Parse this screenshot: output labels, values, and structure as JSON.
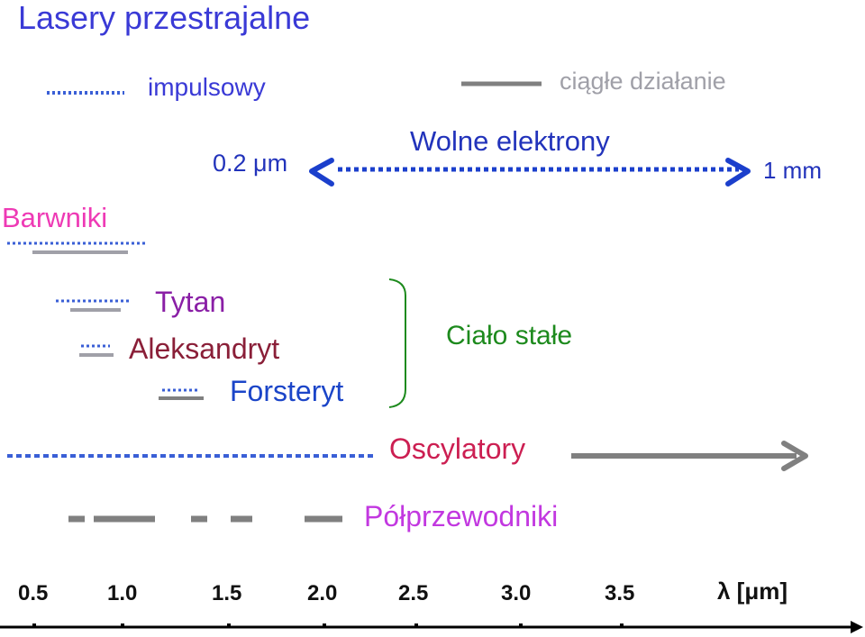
{
  "title": "Lasery przestrajalne",
  "legend": {
    "pulsed": "impulsowy",
    "continuous": "ciągłe działanie"
  },
  "free_electron": {
    "name": "Wolne elektrony",
    "start": "0.2 μm",
    "end": "1 mm"
  },
  "dyes": "Barwniki",
  "solid_state": {
    "group_label": "Ciało stałe",
    "items": [
      "Tytan",
      "Aleksandryt",
      "Forsteryt"
    ]
  },
  "oscillators": "Oscylatory",
  "semiconductors": "Półprzewodniki",
  "axis": {
    "ticks": [
      "0.5",
      "1.0",
      "1.5",
      "2.0",
      "2.5",
      "3.0",
      "3.5"
    ],
    "label": "λ [μm]"
  },
  "colors": {
    "pulsed_line": "#3a5fd6",
    "continuous_line": "#808080",
    "free_electron_arrow": "#1b3fcc",
    "solid_bracket": "#1d8a1d"
  }
}
